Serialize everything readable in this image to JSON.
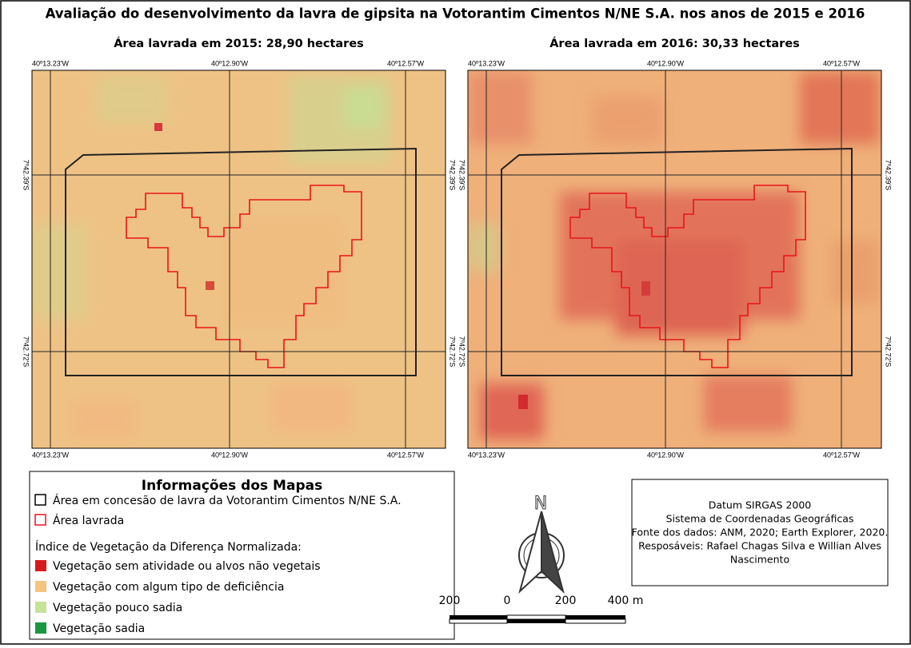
{
  "title": "Avaliação do desenvolvimento da  lavra de gipsita na Votorantim Cimentos N/NE S.A. nos anos de 2015 e 2016",
  "maps": [
    {
      "subtitle": "Área lavrada em 2015: 28,90 hectares",
      "lon_labels": [
        "40º13.23'W",
        "40º12.90'W",
        "40º12.57'W"
      ],
      "lat_labels": [
        "7º42.39'S",
        "7º42.72'S"
      ]
    },
    {
      "subtitle": "Área lavrada em 2016: 30,33 hectares",
      "lon_labels": [
        "40º13.23'W",
        "40º12.90'W",
        "40º12.57'W"
      ],
      "lat_labels": [
        "7º42.39'S",
        "7º42.72'S"
      ]
    }
  ],
  "legend": {
    "title": "Informações dos Mapas",
    "areas": [
      "Área em concesão de lavra da Votorantim Cimentos N/NE S.A.",
      "Área lavrada"
    ],
    "ndvi_title": "Índice de Vegetação da Diferença Normalizada:",
    "ndvi_classes": [
      "Vegetação sem atividade ou alvos não vegetais",
      "Vegetação com algum tipo de deficiência",
      "Vegetação pouco sadia",
      "Vegetação sadia"
    ]
  },
  "north": "N",
  "scale_labels": [
    "200",
    "0",
    "200",
    "400 m"
  ],
  "info": [
    "Datum SIRGAS 2000",
    "Sistema de Coordenadas Geográficas",
    "Fonte dos dados: ANM, 2020; Earth Explorer, 2020.",
    "Resposáveis: Rafael Chagas Silva e Willian Alves",
    "Nascimento"
  ]
}
